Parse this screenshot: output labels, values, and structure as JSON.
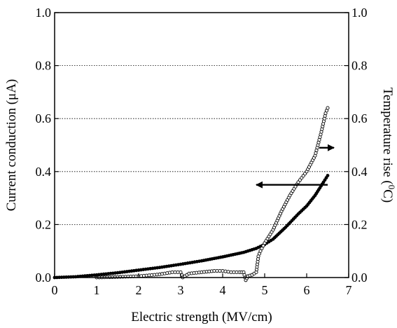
{
  "chart_data": {
    "type": "line",
    "title": "",
    "xlabel": "Electric strength (MV/cm)",
    "ylabel_left": "Current conduction (μA)",
    "ylabel_right_prefix": "Temperature rise (",
    "ylabel_right_sup": "0",
    "ylabel_right_suffix": "C)",
    "xlim": [
      0,
      7
    ],
    "ylim_left": [
      0.0,
      1.0
    ],
    "ylim_right": [
      0.0,
      1.0
    ],
    "x_ticks": [
      "0",
      "1",
      "2",
      "3",
      "4",
      "5",
      "6",
      "7"
    ],
    "y_ticks_left": [
      "0.0",
      "0.2",
      "0.4",
      "0.6",
      "0.8",
      "1.0"
    ],
    "y_ticks_right": [
      "0.0",
      "0.2",
      "0.4",
      "0.6",
      "0.8",
      "1.0"
    ],
    "grid": "horizontal dotted",
    "series": [
      {
        "axis": "left",
        "marker": "filled",
        "color": "#000000",
        "x": [
          0,
          0.5,
          1,
          1.5,
          2,
          2.5,
          3,
          3.5,
          4,
          4.5,
          4.8,
          5,
          5.2,
          5.5,
          5.8,
          6,
          6.2,
          6.4,
          6.5
        ],
        "y": [
          0.0,
          0.003,
          0.01,
          0.018,
          0.028,
          0.038,
          0.05,
          0.063,
          0.078,
          0.095,
          0.11,
          0.125,
          0.145,
          0.19,
          0.24,
          0.27,
          0.31,
          0.36,
          0.385
        ]
      },
      {
        "axis": "right",
        "marker": "open",
        "color": "#000000",
        "x": [
          1.0,
          1.5,
          2.0,
          2.5,
          2.8,
          3.0,
          3.05,
          3.2,
          3.5,
          3.8,
          4.0,
          4.2,
          4.4,
          4.5,
          4.55,
          4.6,
          4.7,
          4.8,
          4.85,
          4.9,
          5.0,
          5.2,
          5.4,
          5.6,
          5.8,
          6.0,
          6.2,
          6.3,
          6.35,
          6.45,
          6.5
        ],
        "y": [
          0.0,
          0.002,
          0.005,
          0.012,
          0.02,
          0.02,
          0.0,
          0.015,
          0.02,
          0.025,
          0.025,
          0.02,
          0.02,
          0.02,
          -0.01,
          0.005,
          0.01,
          0.02,
          0.08,
          0.1,
          0.13,
          0.18,
          0.25,
          0.31,
          0.36,
          0.4,
          0.46,
          0.52,
          0.55,
          0.62,
          0.64
        ]
      }
    ],
    "annotations": [
      {
        "type": "arrow",
        "direction": "left",
        "from": [
          6.5,
          0.35
        ],
        "to": [
          4.8,
          0.35
        ],
        "meaning": "left axis"
      },
      {
        "type": "arrow",
        "direction": "right",
        "from": [
          6.3,
          0.49
        ],
        "to": [
          6.65,
          0.49
        ],
        "meaning": "right axis"
      }
    ]
  }
}
